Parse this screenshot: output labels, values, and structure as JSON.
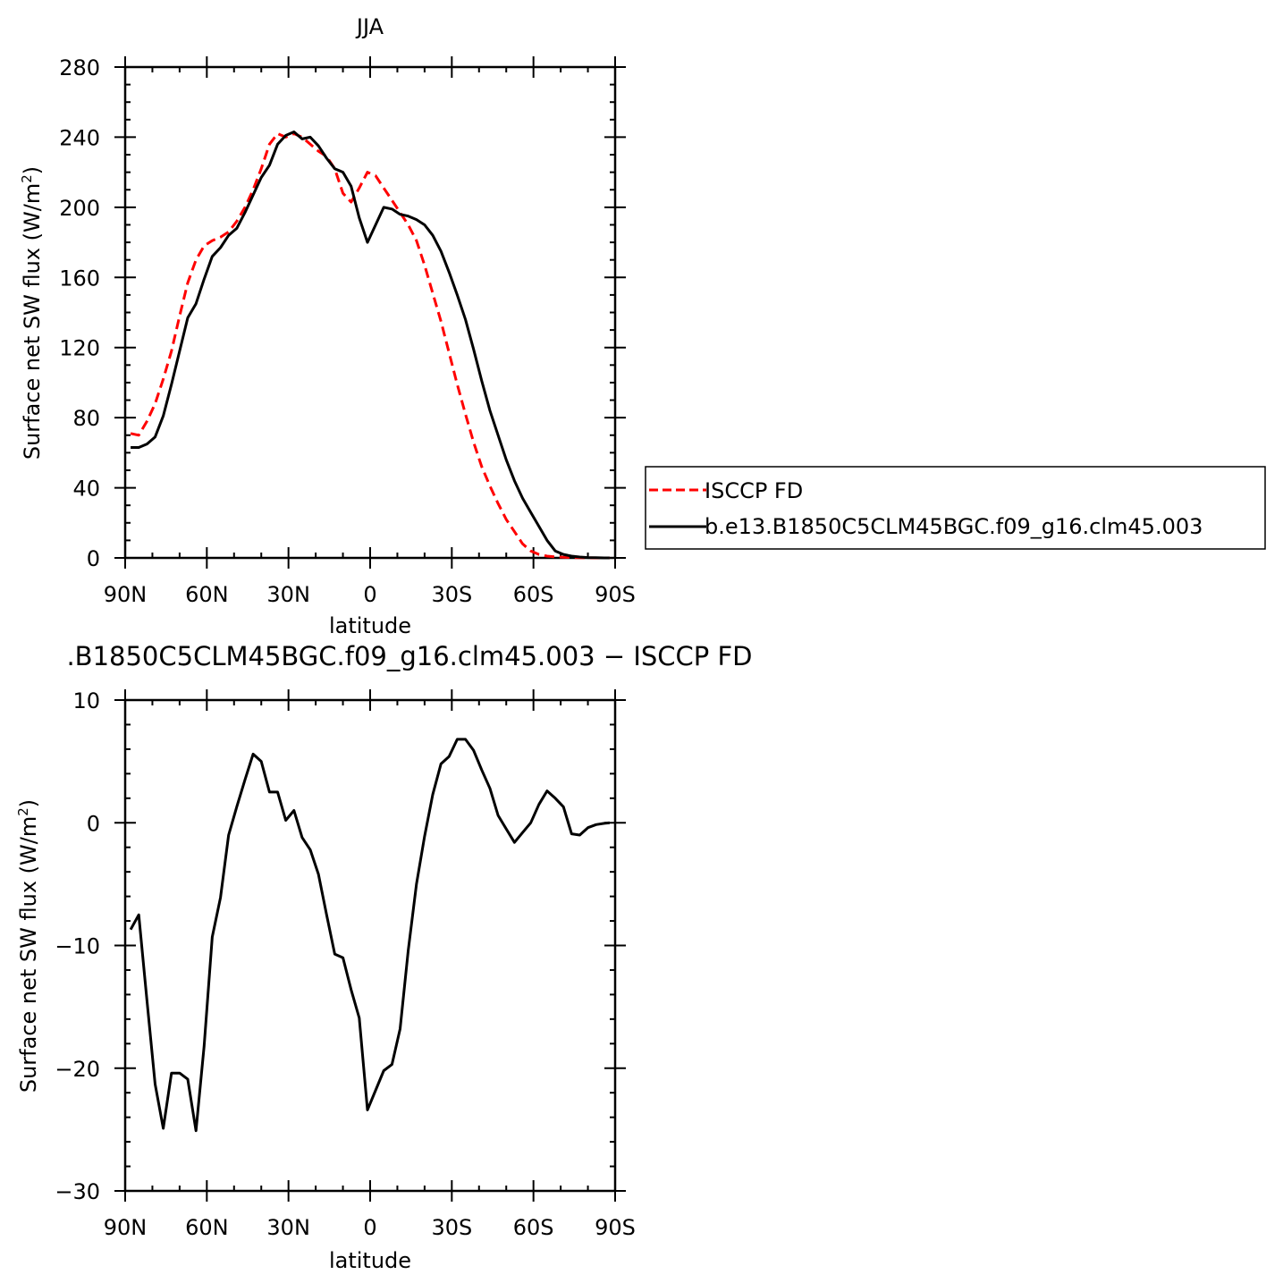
{
  "chart_data": [
    {
      "type": "line",
      "title": "JJA",
      "xlabel": "latitude",
      "ylabel_main": "Surface net SW flux (W/m",
      "ylabel_sup": "2",
      "ylabel_close": ")",
      "xlim": [
        90,
        -90
      ],
      "ylim": [
        0,
        280
      ],
      "x_ticks": [
        90,
        60,
        30,
        0,
        -30,
        -60,
        -90
      ],
      "x_tick_labels": [
        "90N",
        "60N",
        "30N",
        "0",
        "30S",
        "60S",
        "90S"
      ],
      "y_ticks": [
        0,
        40,
        80,
        120,
        160,
        200,
        240,
        280
      ],
      "y_tick_labels": [
        "0",
        "40",
        "80",
        "120",
        "160",
        "200",
        "240",
        "280"
      ],
      "legend": {
        "placement": "right",
        "entries": [
          "ISCCP FD",
          "b.e13.B1850C5CLM45BGC.f09_g16.clm45.003"
        ]
      },
      "series": [
        {
          "name": "ISCCP FD",
          "color": "#ff0000",
          "dash": "dashed",
          "x": [
            88,
            85,
            82,
            79,
            76,
            73,
            70,
            67,
            64,
            61,
            58,
            55,
            52,
            49,
            46,
            43,
            40,
            37,
            34,
            31,
            28,
            25,
            22,
            19,
            16,
            13,
            10,
            7,
            4,
            1,
            -2,
            -5,
            -8,
            -11,
            -14,
            -17,
            -20,
            -23,
            -26,
            -29,
            -32,
            -35,
            -38,
            -41,
            -44,
            -47,
            -50,
            -53,
            -56,
            -59,
            -62,
            -65,
            -68,
            -71,
            -74,
            -77,
            -80,
            -83,
            -86,
            -88
          ],
          "y": [
            71,
            70,
            78,
            88,
            102,
            118,
            138,
            157,
            170,
            178,
            181,
            183,
            186,
            192,
            200,
            210,
            222,
            236,
            242,
            240,
            242,
            240,
            236,
            232,
            229,
            222,
            208,
            203,
            211,
            220,
            218,
            211,
            204,
            197,
            190,
            181,
            167,
            151,
            135,
            117,
            99,
            82,
            66,
            52,
            41,
            31,
            22,
            15,
            8,
            4,
            2,
            1,
            0.6,
            0.4,
            0.2,
            0.1,
            0.05,
            0,
            0,
            0
          ]
        },
        {
          "name": "b.e13.B1850C5CLM45BGC.f09_g16.clm45.003",
          "color": "#000000",
          "dash": "solid",
          "x": [
            88,
            85,
            82,
            79,
            76,
            73,
            70,
            67,
            64,
            61,
            58,
            55,
            52,
            49,
            46,
            43,
            40,
            37,
            34,
            31,
            28,
            25,
            22,
            19,
            16,
            13,
            10,
            7,
            4,
            1,
            -2,
            -5,
            -8,
            -11,
            -14,
            -17,
            -20,
            -23,
            -26,
            -29,
            -32,
            -35,
            -38,
            -41,
            -44,
            -47,
            -50,
            -53,
            -56,
            -59,
            -62,
            -65,
            -68,
            -71,
            -74,
            -77,
            -80,
            -83,
            -86,
            -88
          ],
          "y": [
            63,
            63,
            65,
            69,
            81,
            99,
            118,
            137,
            145,
            159,
            172,
            177,
            184,
            188,
            197,
            207,
            217,
            224,
            236,
            241,
            243,
            239,
            240,
            235,
            228,
            222,
            220,
            212,
            194,
            180,
            190,
            200,
            199,
            196,
            195,
            193,
            190,
            184,
            175,
            163,
            150,
            136,
            119,
            101,
            84,
            70,
            56,
            44,
            34,
            26,
            18,
            10,
            4,
            2,
            1,
            0.5,
            0.2,
            0.1,
            0,
            0
          ]
        }
      ]
    },
    {
      "type": "line",
      "title": ".B1850C5CLM45BGC.f09_g16.clm45.003 − ISCCP FD",
      "xlabel": "latitude",
      "ylabel_main": "Surface net SW flux (W/m",
      "ylabel_sup": "2",
      "ylabel_close": ")",
      "xlim": [
        90,
        -90
      ],
      "ylim": [
        -30,
        10
      ],
      "x_ticks": [
        90,
        60,
        30,
        0,
        -30,
        -60,
        -90
      ],
      "x_tick_labels": [
        "90N",
        "60N",
        "30N",
        "0",
        "30S",
        "60S",
        "90S"
      ],
      "y_ticks": [
        -30,
        -20,
        -10,
        0,
        10
      ],
      "y_tick_labels": [
        "−30",
        "−20",
        "−10",
        "0",
        "10"
      ],
      "series": [
        {
          "color": "#000000",
          "dash": "solid",
          "x": [
            88,
            85,
            82,
            79,
            76,
            73,
            70,
            67,
            64,
            61,
            58,
            55,
            52,
            49,
            46,
            43,
            40,
            37,
            34,
            31,
            28,
            25,
            22,
            19,
            16,
            13,
            10,
            7,
            4,
            1,
            -2,
            -5,
            -8,
            -11,
            -14,
            -17,
            -20,
            -23,
            -26,
            -29,
            -32,
            -35,
            -38,
            -41,
            -44,
            -47,
            -50,
            -53,
            -56,
            -59,
            -62,
            -65,
            -68,
            -71,
            -74,
            -77,
            -80,
            -83,
            -86,
            -88
          ],
          "y": [
            -8.7,
            -7.5,
            -14.5,
            -21.3,
            -24.9,
            -20.4,
            -20.4,
            -20.9,
            -25.1,
            -18.2,
            -9.3,
            -6.1,
            -1.0,
            1.3,
            3.5,
            5.6,
            5.0,
            2.5,
            2.5,
            0.2,
            1.0,
            -1.2,
            -2.2,
            -4.2,
            -7.5,
            -10.7,
            -11.0,
            -13.6,
            -15.9,
            -23.4,
            -21.8,
            -20.2,
            -19.7,
            -16.8,
            -10.4,
            -5.0,
            -1.1,
            2.3,
            4.8,
            5.4,
            6.8,
            6.8,
            5.9,
            4.3,
            2.8,
            0.6,
            -0.5,
            -1.6,
            -0.8,
            0.0,
            1.5,
            2.6,
            2.0,
            1.3,
            -0.9,
            -1.0,
            -0.4,
            -0.15,
            -0.05,
            0
          ]
        }
      ]
    }
  ]
}
